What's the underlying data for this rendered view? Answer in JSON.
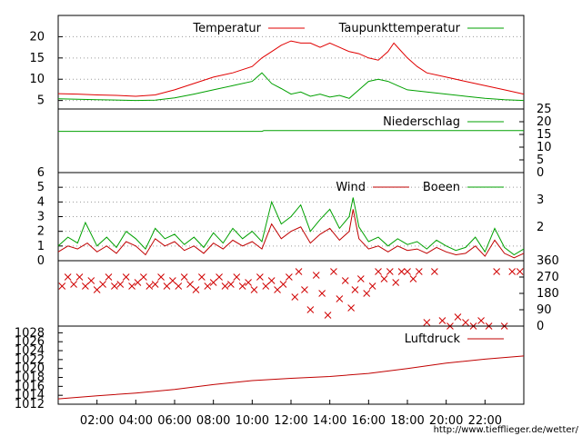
{
  "colors": {
    "temperature": "#e00000",
    "dewpoint": "#00a000",
    "precipitation": "#00a000",
    "wind": "#c00000",
    "gusts": "#00a000",
    "direction": "#d00000",
    "pressure": "#c00000",
    "credit": "#d00000",
    "grid": "#9a9a9a"
  },
  "credit": "http://www.tiefflieger.de/wetter/",
  "chart_data": [
    {
      "type": "line",
      "panel": "temperature",
      "x_hours_range": [
        0,
        24
      ],
      "ylim": [
        3,
        25
      ],
      "y_ticks": [
        5,
        10,
        15,
        20
      ],
      "grid": true,
      "legend_position": "top-right",
      "series": [
        {
          "name": "Temperatur",
          "points": [
            [
              0,
              6.6
            ],
            [
              1,
              6.5
            ],
            [
              2,
              6.3
            ],
            [
              3,
              6.2
            ],
            [
              4,
              6.0
            ],
            [
              5,
              6.3
            ],
            [
              6,
              7.5
            ],
            [
              7,
              9.0
            ],
            [
              8,
              10.5
            ],
            [
              9,
              11.5
            ],
            [
              10,
              13.0
            ],
            [
              10.5,
              15.0
            ],
            [
              11,
              16.5
            ],
            [
              11.5,
              18.0
            ],
            [
              12,
              19.0
            ],
            [
              12.5,
              18.5
            ],
            [
              13,
              18.5
            ],
            [
              13.5,
              17.5
            ],
            [
              14,
              18.5
            ],
            [
              14.5,
              17.5
            ],
            [
              15,
              16.5
            ],
            [
              15.5,
              16.0
            ],
            [
              16,
              15.0
            ],
            [
              16.5,
              14.5
            ],
            [
              17,
              16.5
            ],
            [
              17.3,
              18.5
            ],
            [
              17.6,
              17.0
            ],
            [
              18,
              15.0
            ],
            [
              18.5,
              13.0
            ],
            [
              19,
              11.5
            ],
            [
              20,
              10.5
            ],
            [
              21,
              9.5
            ],
            [
              22,
              8.5
            ],
            [
              23,
              7.5
            ],
            [
              24,
              6.5
            ]
          ]
        },
        {
          "name": "Taupunkttemperatur",
          "points": [
            [
              0,
              5.4
            ],
            [
              2,
              5.2
            ],
            [
              4,
              5.0
            ],
            [
              5,
              5.1
            ],
            [
              6,
              5.6
            ],
            [
              7,
              6.5
            ],
            [
              8,
              7.5
            ],
            [
              9,
              8.5
            ],
            [
              10,
              9.5
            ],
            [
              10.5,
              11.5
            ],
            [
              11,
              9.0
            ],
            [
              11.5,
              7.8
            ],
            [
              12,
              6.5
            ],
            [
              12.5,
              7.0
            ],
            [
              13,
              6.0
            ],
            [
              13.5,
              6.5
            ],
            [
              14,
              5.8
            ],
            [
              14.5,
              6.2
            ],
            [
              15,
              5.5
            ],
            [
              15.5,
              7.5
            ],
            [
              16,
              9.5
            ],
            [
              16.5,
              10.0
            ],
            [
              17,
              9.5
            ],
            [
              17.5,
              8.5
            ],
            [
              18,
              7.5
            ],
            [
              19,
              7.0
            ],
            [
              20,
              6.5
            ],
            [
              21,
              6.0
            ],
            [
              22,
              5.5
            ],
            [
              23,
              5.2
            ],
            [
              24,
              5.0
            ]
          ]
        }
      ]
    },
    {
      "type": "line",
      "panel": "precipitation",
      "x_hours_range": [
        0,
        24
      ],
      "ylim": [
        0,
        25
      ],
      "y_ticks": [
        0,
        5,
        10,
        15,
        20,
        25
      ],
      "legend_position": "top-right",
      "series": [
        {
          "name": "Niederschlag",
          "points": [
            [
              0,
              16.2
            ],
            [
              10.5,
              16.2
            ],
            [
              10.6,
              16.5
            ],
            [
              24,
              16.5
            ]
          ]
        }
      ]
    },
    {
      "type": "line",
      "panel": "wind",
      "x_hours_range": [
        0,
        24
      ],
      "ylim": [
        0,
        6
      ],
      "y_ticks": [
        0,
        1,
        2,
        3,
        4,
        5,
        6
      ],
      "y2_ticks": [
        2,
        3
      ],
      "grid": true,
      "legend_position": "top-right",
      "series": [
        {
          "name": "Wind",
          "points": [
            [
              0,
              0.6
            ],
            [
              0.5,
              1.0
            ],
            [
              1,
              0.8
            ],
            [
              1.5,
              1.2
            ],
            [
              2,
              0.6
            ],
            [
              2.5,
              1.0
            ],
            [
              3,
              0.5
            ],
            [
              3.5,
              1.3
            ],
            [
              4,
              1.0
            ],
            [
              4.5,
              0.4
            ],
            [
              5,
              1.5
            ],
            [
              5.5,
              1.0
            ],
            [
              6,
              1.3
            ],
            [
              6.5,
              0.7
            ],
            [
              7,
              1.0
            ],
            [
              7.5,
              0.5
            ],
            [
              8,
              1.2
            ],
            [
              8.5,
              0.8
            ],
            [
              9,
              1.4
            ],
            [
              9.5,
              1.0
            ],
            [
              10,
              1.3
            ],
            [
              10.5,
              0.8
            ],
            [
              11,
              2.5
            ],
            [
              11.5,
              1.5
            ],
            [
              12,
              2.0
            ],
            [
              12.5,
              2.3
            ],
            [
              13,
              1.2
            ],
            [
              13.5,
              1.8
            ],
            [
              14,
              2.2
            ],
            [
              14.5,
              1.4
            ],
            [
              15,
              2.0
            ],
            [
              15.2,
              3.5
            ],
            [
              15.5,
              1.5
            ],
            [
              16,
              0.8
            ],
            [
              16.5,
              1.0
            ],
            [
              17,
              0.6
            ],
            [
              17.5,
              1.0
            ],
            [
              18,
              0.7
            ],
            [
              18.5,
              0.8
            ],
            [
              19,
              0.5
            ],
            [
              19.5,
              0.9
            ],
            [
              20,
              0.6
            ],
            [
              20.5,
              0.4
            ],
            [
              21,
              0.5
            ],
            [
              21.5,
              1.0
            ],
            [
              22,
              0.3
            ],
            [
              22.5,
              1.4
            ],
            [
              23,
              0.5
            ],
            [
              23.5,
              0.2
            ],
            [
              24,
              0.5
            ]
          ]
        },
        {
          "name": "Boeen",
          "points": [
            [
              0,
              1.0
            ],
            [
              0.5,
              1.6
            ],
            [
              1,
              1.2
            ],
            [
              1.4,
              2.6
            ],
            [
              2,
              1.0
            ],
            [
              2.5,
              1.6
            ],
            [
              3,
              0.9
            ],
            [
              3.5,
              2.0
            ],
            [
              4,
              1.5
            ],
            [
              4.5,
              0.8
            ],
            [
              5,
              2.2
            ],
            [
              5.5,
              1.5
            ],
            [
              6,
              1.8
            ],
            [
              6.5,
              1.1
            ],
            [
              7,
              1.6
            ],
            [
              7.5,
              0.9
            ],
            [
              8,
              1.9
            ],
            [
              8.5,
              1.2
            ],
            [
              9,
              2.2
            ],
            [
              9.5,
              1.5
            ],
            [
              10,
              2.0
            ],
            [
              10.5,
              1.3
            ],
            [
              11,
              4.0
            ],
            [
              11.5,
              2.5
            ],
            [
              12,
              3.0
            ],
            [
              12.5,
              3.8
            ],
            [
              13,
              2.0
            ],
            [
              13.5,
              2.8
            ],
            [
              14,
              3.5
            ],
            [
              14.5,
              2.2
            ],
            [
              15,
              3.0
            ],
            [
              15.2,
              4.3
            ],
            [
              15.5,
              2.3
            ],
            [
              16,
              1.3
            ],
            [
              16.5,
              1.6
            ],
            [
              17,
              1.0
            ],
            [
              17.5,
              1.5
            ],
            [
              18,
              1.1
            ],
            [
              18.5,
              1.3
            ],
            [
              19,
              0.8
            ],
            [
              19.5,
              1.4
            ],
            [
              20,
              1.0
            ],
            [
              20.5,
              0.7
            ],
            [
              21,
              0.9
            ],
            [
              21.5,
              1.6
            ],
            [
              22,
              0.6
            ],
            [
              22.5,
              2.2
            ],
            [
              23,
              0.9
            ],
            [
              23.5,
              0.4
            ],
            [
              24,
              0.8
            ]
          ]
        }
      ]
    },
    {
      "type": "scatter",
      "panel": "wind_direction",
      "x_hours_range": [
        0,
        24
      ],
      "ylim": [
        0,
        360
      ],
      "y2_ticks": [
        0,
        90,
        180,
        270,
        360
      ],
      "series": [
        {
          "name": "",
          "marker": "x",
          "points": [
            [
              0.2,
              220
            ],
            [
              0.5,
              270
            ],
            [
              0.8,
              230
            ],
            [
              1.1,
              270
            ],
            [
              1.4,
              220
            ],
            [
              1.7,
              250
            ],
            [
              2.0,
              200
            ],
            [
              2.3,
              230
            ],
            [
              2.6,
              270
            ],
            [
              2.9,
              220
            ],
            [
              3.2,
              230
            ],
            [
              3.5,
              270
            ],
            [
              3.8,
              220
            ],
            [
              4.1,
              240
            ],
            [
              4.4,
              270
            ],
            [
              4.7,
              220
            ],
            [
              5.0,
              230
            ],
            [
              5.3,
              270
            ],
            [
              5.6,
              220
            ],
            [
              5.9,
              250
            ],
            [
              6.2,
              220
            ],
            [
              6.5,
              270
            ],
            [
              6.8,
              230
            ],
            [
              7.1,
              200
            ],
            [
              7.4,
              270
            ],
            [
              7.7,
              220
            ],
            [
              8.0,
              240
            ],
            [
              8.3,
              270
            ],
            [
              8.6,
              220
            ],
            [
              8.9,
              230
            ],
            [
              9.2,
              270
            ],
            [
              9.5,
              220
            ],
            [
              9.8,
              240
            ],
            [
              10.1,
              200
            ],
            [
              10.4,
              270
            ],
            [
              10.7,
              220
            ],
            [
              11.0,
              250
            ],
            [
              11.3,
              200
            ],
            [
              11.6,
              230
            ],
            [
              11.9,
              270
            ],
            [
              12.2,
              160
            ],
            [
              12.4,
              300
            ],
            [
              12.7,
              200
            ],
            [
              13.0,
              90
            ],
            [
              13.3,
              280
            ],
            [
              13.6,
              180
            ],
            [
              13.9,
              60
            ],
            [
              14.2,
              300
            ],
            [
              14.5,
              150
            ],
            [
              14.8,
              250
            ],
            [
              15.1,
              100
            ],
            [
              15.3,
              200
            ],
            [
              15.6,
              260
            ],
            [
              15.9,
              180
            ],
            [
              16.2,
              220
            ],
            [
              16.5,
              300
            ],
            [
              16.8,
              260
            ],
            [
              17.1,
              300
            ],
            [
              17.4,
              240
            ],
            [
              17.7,
              300
            ],
            [
              18.0,
              300
            ],
            [
              18.3,
              260
            ],
            [
              18.6,
              300
            ],
            [
              19.0,
              20
            ],
            [
              19.4,
              300
            ],
            [
              19.8,
              30
            ],
            [
              20.2,
              0
            ],
            [
              20.6,
              50
            ],
            [
              21.0,
              20
            ],
            [
              21.4,
              0
            ],
            [
              21.8,
              30
            ],
            [
              22.2,
              0
            ],
            [
              22.6,
              300
            ],
            [
              23.0,
              0
            ],
            [
              23.4,
              300
            ],
            [
              23.8,
              300
            ]
          ]
        }
      ]
    },
    {
      "type": "line",
      "panel": "pressure",
      "x_hours_range": [
        0,
        24
      ],
      "ylim": [
        1012,
        1029.5
      ],
      "y_ticks": [
        1012,
        1014,
        1016,
        1018,
        1020,
        1022,
        1024,
        1026,
        1028
      ],
      "x_ticks": [
        "02:00",
        "04:00",
        "06:00",
        "08:00",
        "10:00",
        "12:00",
        "14:00",
        "16:00",
        "18:00",
        "20:00",
        "22:00"
      ],
      "legend_position": "top-right",
      "series": [
        {
          "name": "Luftdruck",
          "points": [
            [
              0,
              1013.2
            ],
            [
              2,
              1013.9
            ],
            [
              4,
              1014.5
            ],
            [
              6,
              1015.3
            ],
            [
              8,
              1016.4
            ],
            [
              10,
              1017.3
            ],
            [
              12,
              1017.8
            ],
            [
              14,
              1018.2
            ],
            [
              16,
              1018.9
            ],
            [
              18,
              1020.0
            ],
            [
              20,
              1021.2
            ],
            [
              22,
              1022.1
            ],
            [
              24,
              1022.8
            ]
          ]
        }
      ]
    }
  ]
}
